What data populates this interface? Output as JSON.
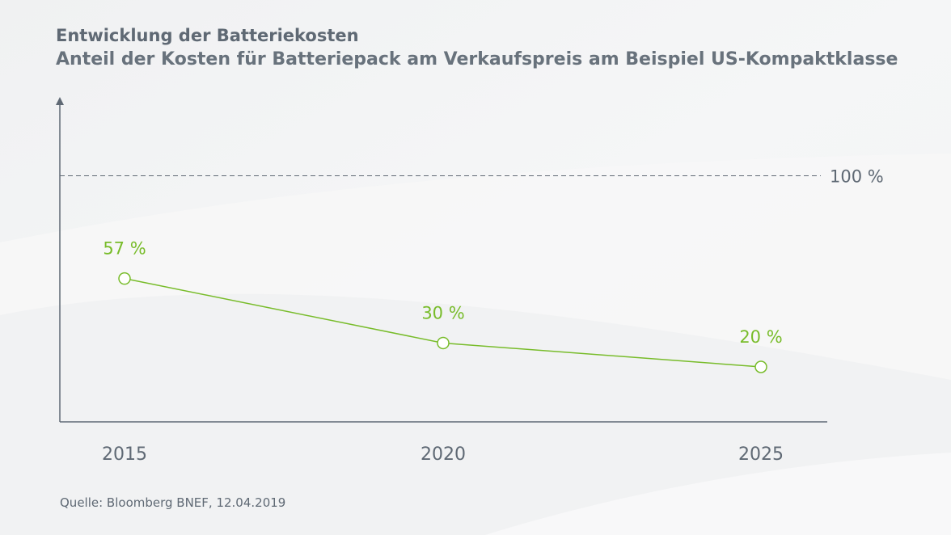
{
  "header": {
    "title": "Entwicklung der Batteriekosten",
    "subtitle": "Anteil der Kosten für Batteriepack am Verkaufspreis am Beispiel US-Kompaktklasse"
  },
  "footer": {
    "source": "Quelle: Bloomberg BNEF, 12.04.2019"
  },
  "colors": {
    "series": "#78bc2a",
    "axis": "#5f6974",
    "text": "#5f6974",
    "background": "#f3f4f5"
  },
  "chart_data": {
    "type": "line",
    "title": "Entwicklung der Batteriekosten",
    "subtitle": "Anteil der Kosten für Batteriepack am Verkaufspreis am Beispiel US-Kompaktklasse",
    "xlabel": "",
    "ylabel": "",
    "categories": [
      "2015",
      "2020",
      "2025"
    ],
    "series": [
      {
        "values": [
          57,
          30,
          20
        ],
        "data_labels": [
          "57 %",
          "30 %",
          "20 %"
        ],
        "marker": "open-circle"
      }
    ],
    "reference_line": {
      "value": 100,
      "label": "100 %",
      "style": "dashed"
    },
    "ylim": [
      -3,
      133
    ],
    "grid": false,
    "legend": "none",
    "y_axis_arrow": true
  }
}
